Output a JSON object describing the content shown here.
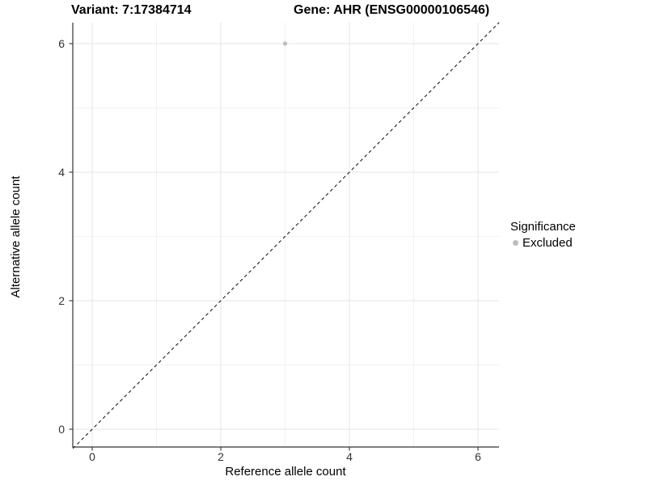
{
  "header": {
    "variant_title": "Variant: 7:17384714",
    "gene_title": "Gene: AHR (ENSG00000106546)"
  },
  "chart_data": {
    "type": "scatter",
    "title_left": "Variant: 7:17384714",
    "title_right": "Gene: AHR (ENSG00000106546)",
    "xlabel": "Reference allele count",
    "ylabel": "Alternative allele count",
    "xlim": [
      -0.3,
      6.33
    ],
    "ylim": [
      -0.3,
      6.33
    ],
    "x_ticks": [
      0,
      2,
      4,
      6
    ],
    "y_ticks": [
      0,
      2,
      4,
      6
    ],
    "x_minor_gridlines": [
      1,
      3,
      5
    ],
    "y_minor_gridlines": [
      1,
      3,
      5
    ],
    "grid": true,
    "points": [
      {
        "x": 3,
        "y": 6,
        "series": "Excluded"
      }
    ],
    "reference_line": {
      "type": "identity",
      "slope": 1,
      "intercept": 0,
      "style": "dashed",
      "color": "#1a1a1a"
    },
    "legend": {
      "title": "Significance",
      "position": "right",
      "items": [
        {
          "label": "Excluded",
          "color": "#bdbdbd"
        }
      ]
    },
    "style": {
      "point_color": "#bdbdbd",
      "point_radius": 2.7,
      "axis_color": "#333333",
      "grid_major_color": "#e4e4e4",
      "grid_minor_color": "#f1f1f1",
      "background": "#ffffff"
    }
  }
}
